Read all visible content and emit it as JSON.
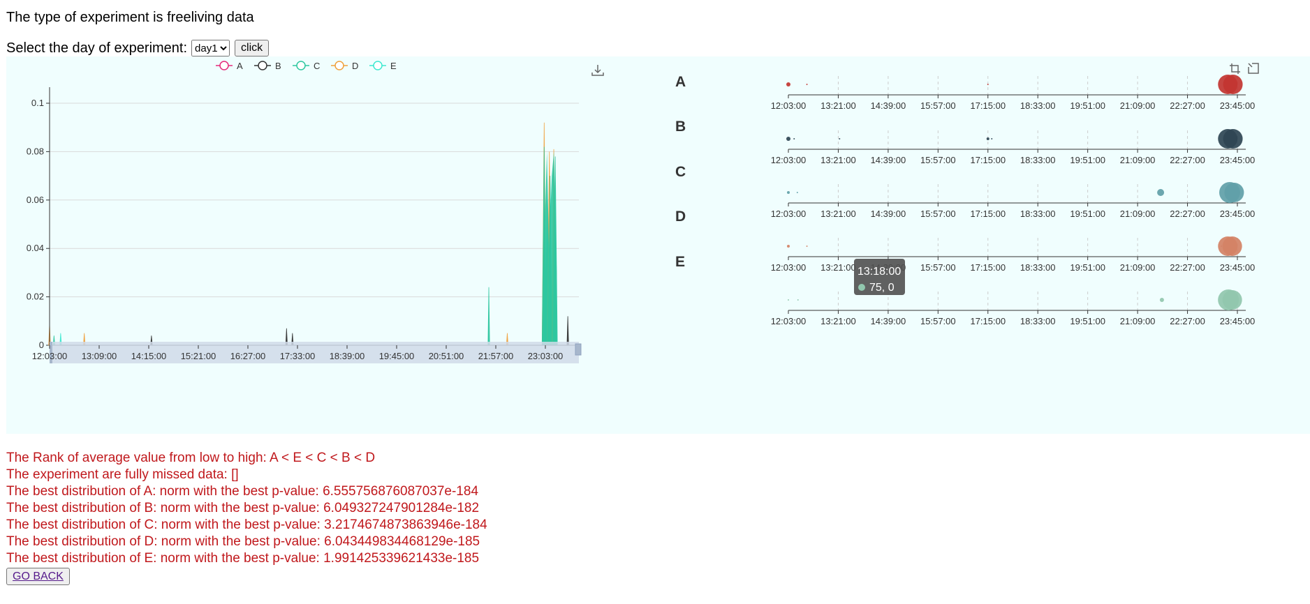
{
  "header": {
    "experiment_type": "The type of experiment is freeliving data",
    "select_label": "Select the day of experiment:",
    "selected_day": "day1",
    "click_label": "click"
  },
  "colors": {
    "A": "#e5297a",
    "B": "#333333",
    "C": "#2ec7a0",
    "D": "#f0a03c",
    "E": "#3de8d0",
    "panel_bg": "#f0fefe",
    "result_text": "#c0181c"
  },
  "chart_data": [
    {
      "type": "area",
      "legend": [
        "A",
        "B",
        "C",
        "D",
        "E"
      ],
      "legend_placement": "top-center",
      "x_ticks": [
        "12:03:00",
        "13:09:00",
        "14:15:00",
        "15:21:00",
        "16:27:00",
        "17:33:00",
        "18:39:00",
        "19:45:00",
        "20:51:00",
        "21:57:00",
        "23:03:00"
      ],
      "xlim_minutes": [
        723,
        1440
      ],
      "ylim": [
        0,
        0.1
      ],
      "y_ticks": [
        "0",
        "0.02",
        "0.04",
        "0.06",
        "0.08",
        "0.1"
      ],
      "grid": true,
      "toolbox": "save-as-image",
      "datazoom": "bottom-slider",
      "spikes": [
        {
          "series": "D",
          "t": 723,
          "v": 0.009
        },
        {
          "series": "C",
          "t": 729,
          "v": 0.004
        },
        {
          "series": "E",
          "t": 738,
          "v": 0.005
        },
        {
          "series": "D",
          "t": 770,
          "v": 0.005
        },
        {
          "series": "B",
          "t": 861,
          "v": 0.004
        },
        {
          "series": "B",
          "t": 1044,
          "v": 0.007
        },
        {
          "series": "B",
          "t": 1052,
          "v": 0.005
        },
        {
          "series": "C",
          "t": 1318,
          "v": 0.024
        },
        {
          "series": "D",
          "t": 1343,
          "v": 0.005
        },
        {
          "series": "D",
          "t": 1393,
          "v": 0.092
        },
        {
          "series": "C",
          "t": 1393,
          "v": 0.082
        },
        {
          "series": "C",
          "t": 1397,
          "v": 0.06
        },
        {
          "series": "D",
          "t": 1400,
          "v": 0.08
        },
        {
          "series": "C",
          "t": 1401,
          "v": 0.07
        },
        {
          "series": "D",
          "t": 1406,
          "v": 0.081
        },
        {
          "series": "C",
          "t": 1408,
          "v": 0.078
        },
        {
          "series": "B",
          "t": 1425,
          "v": 0.012
        }
      ]
    },
    {
      "type": "scatter",
      "series": [
        "A",
        "B",
        "C",
        "D",
        "E"
      ],
      "row_colors": [
        "#c23531",
        "#2f4554",
        "#61a0a8",
        "#d48265",
        "#91c7ae"
      ],
      "x_ticks": [
        "12:03:00",
        "13:21:00",
        "14:39:00",
        "15:57:00",
        "17:15:00",
        "18:33:00",
        "19:51:00",
        "21:09:00",
        "22:27:00",
        "23:45:00"
      ],
      "xlim_minutes": [
        723,
        1425
      ],
      "toolbox": [
        "data-zoom",
        "zoom-reset"
      ],
      "rows": [
        [
          {
            "t": 723,
            "v": 3
          },
          {
            "t": 752,
            "v": 1
          },
          {
            "t": 1035,
            "v": 1
          },
          {
            "t": 1410,
            "v": 14
          },
          {
            "t": 1418,
            "v": 14
          }
        ],
        [
          {
            "t": 723,
            "v": 3
          },
          {
            "t": 732,
            "v": 1
          },
          {
            "t": 803,
            "v": 1
          },
          {
            "t": 1035,
            "v": 2
          },
          {
            "t": 1041,
            "v": 1
          },
          {
            "t": 1410,
            "v": 14
          },
          {
            "t": 1418,
            "v": 14
          }
        ],
        [
          {
            "t": 723,
            "v": 2
          },
          {
            "t": 737,
            "v": 1
          },
          {
            "t": 1305,
            "v": 5
          },
          {
            "t": 1413,
            "v": 15
          },
          {
            "t": 1420,
            "v": 14
          }
        ],
        [
          {
            "t": 723,
            "v": 2
          },
          {
            "t": 752,
            "v": 1
          },
          {
            "t": 1400,
            "v": 1
          },
          {
            "t": 1410,
            "v": 14
          },
          {
            "t": 1417,
            "v": 14
          }
        ],
        [
          {
            "t": 723,
            "v": 1
          },
          {
            "t": 738,
            "v": 1
          },
          {
            "t": 1307,
            "v": 3
          },
          {
            "t": 1411,
            "v": 15
          },
          {
            "t": 1417,
            "v": 14
          }
        ]
      ],
      "tooltip": {
        "time": "13:18:00",
        "value": "75, 0",
        "marker_color": "#91c7ae"
      }
    }
  ],
  "results": {
    "rank": "The Rank of average value from low to high: A < E < C < B < D",
    "missed": "The experiment are fully missed data: []",
    "dist_A": "The best distribution of A: norm with the best p-value: 6.555756876087037e-184",
    "dist_B": "The best distribution of B: norm with the best p-value: 6.049327247901284e-182",
    "dist_C": "The best distribution of C: norm with the best p-value: 3.2174674873863946e-184",
    "dist_D": "The best distribution of D: norm with the best p-value: 6.043449834468129e-185",
    "dist_E": "The best distribution of E: norm with the best p-value: 1.991425339621433e-185"
  },
  "go_back_label": "GO BACK"
}
